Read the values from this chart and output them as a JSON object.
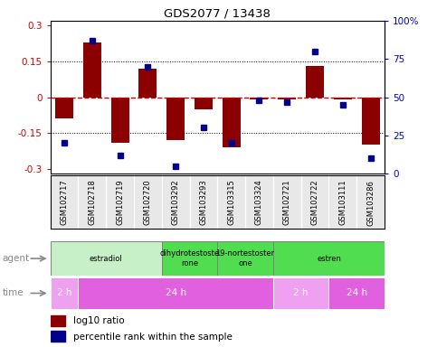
{
  "title": "GDS2077 / 13438",
  "samples": [
    "GSM102717",
    "GSM102718",
    "GSM102719",
    "GSM102720",
    "GSM103292",
    "GSM103293",
    "GSM103315",
    "GSM103324",
    "GSM102721",
    "GSM102722",
    "GSM103111",
    "GSM103286"
  ],
  "log10_ratio": [
    -0.09,
    0.23,
    -0.19,
    0.12,
    -0.18,
    -0.05,
    -0.21,
    -0.01,
    -0.01,
    0.13,
    -0.01,
    -0.2
  ],
  "percentile": [
    20,
    87,
    12,
    70,
    5,
    30,
    20,
    48,
    47,
    80,
    45,
    10
  ],
  "ylim": [
    -0.32,
    0.32
  ],
  "yticks_left": [
    -0.3,
    -0.15,
    0,
    0.15,
    0.3
  ],
  "yticks_right": [
    0,
    25,
    50,
    75,
    100
  ],
  "hlines": [
    -0.15,
    0,
    0.15
  ],
  "agent_groups": [
    {
      "label": "estradiol",
      "start": 0,
      "end": 4,
      "color": "#c8f0c8"
    },
    {
      "label": "dihydrotestoste\nrone",
      "start": 4,
      "end": 6,
      "color": "#50dd50"
    },
    {
      "label": "19-nortestoster\none",
      "start": 6,
      "end": 8,
      "color": "#50dd50"
    },
    {
      "label": "estren",
      "start": 8,
      "end": 12,
      "color": "#50dd50"
    }
  ],
  "time_groups": [
    {
      "label": "2 h",
      "start": 0,
      "end": 1,
      "color": "#f0a0f0"
    },
    {
      "label": "24 h",
      "start": 1,
      "end": 8,
      "color": "#e060e0"
    },
    {
      "label": "2 h",
      "start": 8,
      "end": 10,
      "color": "#f0a0f0"
    },
    {
      "label": "24 h",
      "start": 10,
      "end": 12,
      "color": "#e060e0"
    }
  ],
  "bar_color": "#8B0000",
  "dot_color": "#00008B",
  "zero_line_color": "#cc0000",
  "grid_color": "black",
  "label_color_left": "#cc0000",
  "label_color_right": "#0000cc",
  "bg_color": "#ffffff"
}
